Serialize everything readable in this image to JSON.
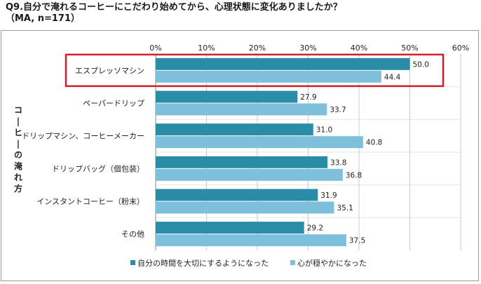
{
  "title": "Q9.自分で淹れるコーヒーにこだわり始めてから、心理状態に変化ありましたか？",
  "subtitle": "（MA, n=171）",
  "chart_data": {
    "type": "bar",
    "orientation": "horizontal",
    "ylabel": "コーヒーの淹れ方",
    "categories": [
      "エスプレッソマシン",
      "ペーパードリップ",
      "ドリップマシン、コーヒーメーカー",
      "ドリップバッグ（個包装）",
      "インスタントコーヒー（粉末）",
      "その他"
    ],
    "series": [
      {
        "name": "自分の時間を大切にするようになった",
        "color": "#2a8ca6",
        "values": [
          50.0,
          27.9,
          31.0,
          33.8,
          31.9,
          29.2
        ]
      },
      {
        "name": "心が穏やかになった",
        "color": "#7ec0dc",
        "values": [
          44.4,
          33.7,
          40.8,
          36.8,
          35.1,
          37.5
        ]
      }
    ],
    "xlim": [
      0,
      60
    ],
    "xticks": [
      "0%",
      "10%",
      "20%",
      "30%",
      "40%",
      "50%",
      "60%"
    ],
    "grid": true,
    "legend_position": "bottom",
    "highlight": {
      "category": "エスプレッソマシン",
      "color": "#d0202a"
    }
  }
}
